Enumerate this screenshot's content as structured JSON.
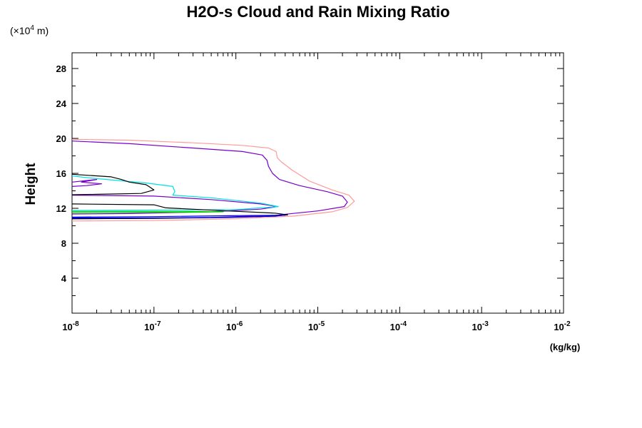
{
  "chart_data": {
    "type": "line",
    "title": "H2O-s Cloud and Rain Mixing Ratio",
    "ylabel": "Height",
    "yunit_prefix": "(×10",
    "yunit_exp": "4",
    "yunit_suffix": " m)",
    "xunit": "(kg/kg)",
    "xscale": "log",
    "xlim": [
      1e-08,
      0.01
    ],
    "ylim": [
      0,
      29.8
    ],
    "x_tick_labels": [
      {
        "base": "10",
        "exp": "-8",
        "value": 1e-08
      },
      {
        "base": "10",
        "exp": "-7",
        "value": 1e-07
      },
      {
        "base": "10",
        "exp": "-6",
        "value": 1e-06
      },
      {
        "base": "10",
        "exp": "-5",
        "value": 1e-05
      },
      {
        "base": "10",
        "exp": "-4",
        "value": 0.0001
      },
      {
        "base": "10",
        "exp": "-3",
        "value": 0.001
      },
      {
        "base": "10",
        "exp": "-2",
        "value": 0.01
      }
    ],
    "y_tick_labels": [
      "4",
      "8",
      "12",
      "16",
      "20",
      "24",
      "28"
    ],
    "y_major_ticks": [
      4,
      8,
      12,
      16,
      20,
      24,
      28
    ],
    "grid": false,
    "legend": "none",
    "series": [
      {
        "color": "#ff9a9a",
        "points": [
          [
            1e-08,
            19.9
          ],
          [
            5e-08,
            19.8
          ],
          [
            3e-07,
            19.5
          ],
          [
            1.2e-06,
            19.2
          ],
          [
            2.5e-06,
            18.9
          ],
          [
            3.1e-06,
            18.5
          ],
          [
            3.2e-06,
            17.8
          ],
          [
            3.6e-06,
            17.3
          ],
          [
            5e-06,
            16.3
          ],
          [
            8e-06,
            15.1
          ],
          [
            1.5e-05,
            14.1
          ],
          [
            2.4e-05,
            13.5
          ],
          [
            2.8e-05,
            12.8
          ],
          [
            2.3e-05,
            12.1
          ],
          [
            1.5e-05,
            11.6
          ],
          [
            5e-06,
            11.1
          ],
          [
            1e-06,
            10.8
          ],
          [
            1e-07,
            10.6
          ],
          [
            1e-08,
            10.55
          ]
        ]
      },
      {
        "color": "#7700cc",
        "points": [
          [
            1e-08,
            19.7
          ],
          [
            5e-08,
            19.4
          ],
          [
            3e-07,
            18.9
          ],
          [
            1.2e-06,
            18.5
          ],
          [
            2.1e-06,
            18.1
          ],
          [
            2.4e-06,
            17.5
          ],
          [
            2.5e-06,
            16.8
          ],
          [
            2.8e-06,
            16.0
          ],
          [
            3.4e-06,
            15.3
          ],
          [
            6e-06,
            14.6
          ],
          [
            1.3e-05,
            13.9
          ],
          [
            2e-05,
            13.4
          ],
          [
            2.3e-05,
            12.7
          ],
          [
            2.1e-05,
            12.2
          ],
          [
            1e-05,
            11.7
          ],
          [
            3e-06,
            11.2
          ],
          [
            5e-07,
            10.95
          ],
          [
            5e-08,
            10.85
          ],
          [
            1e-08,
            10.8
          ]
        ]
      },
      {
        "color": "#7700cc",
        "points": [
          [
            1e-08,
            13.5
          ],
          [
            1e-07,
            13.4
          ],
          [
            5e-07,
            13.0
          ],
          [
            2e-06,
            12.5
          ],
          [
            3.2e-06,
            12.2
          ],
          [
            2e-06,
            11.9
          ],
          [
            5e-07,
            11.6
          ],
          [
            5e-08,
            11.4
          ],
          [
            1e-08,
            11.35
          ]
        ]
      },
      {
        "color": "#7700cc",
        "points": [
          [
            1e-08,
            15.0
          ],
          [
            2e-08,
            15.3
          ],
          [
            1.3e-08,
            15.0
          ],
          [
            2.3e-08,
            14.8
          ],
          [
            1.5e-08,
            14.6
          ],
          [
            1e-08,
            14.5
          ]
        ]
      },
      {
        "color": "#00e0e0",
        "points": [
          [
            1e-08,
            15.7
          ],
          [
            2e-08,
            15.4
          ],
          [
            8e-08,
            14.9
          ],
          [
            1.7e-07,
            14.5
          ],
          [
            1.8e-07,
            13.9
          ],
          [
            1.7e-07,
            13.5
          ],
          [
            5e-07,
            13.2
          ],
          [
            2e-06,
            12.6
          ],
          [
            3.3e-06,
            12.2
          ],
          [
            1e-06,
            11.85
          ],
          [
            1e-07,
            11.8
          ],
          [
            1e-08,
            11.75
          ]
        ]
      },
      {
        "color": "#000000",
        "points": [
          [
            1e-08,
            15.9
          ],
          [
            3e-08,
            15.6
          ],
          [
            4e-08,
            15.3
          ],
          [
            5e-08,
            15.0
          ],
          [
            8e-08,
            14.7
          ],
          [
            9e-08,
            14.4
          ],
          [
            1e-07,
            14.1
          ],
          [
            7e-08,
            13.7
          ],
          [
            2e-08,
            13.6
          ],
          [
            1e-08,
            13.55
          ]
        ]
      },
      {
        "color": "#000000",
        "points": [
          [
            1e-08,
            12.5
          ],
          [
            1e-07,
            12.4
          ],
          [
            1.4e-07,
            12.05
          ],
          [
            8e-07,
            11.7
          ],
          [
            3e-06,
            11.45
          ],
          [
            4.3e-06,
            11.25
          ],
          [
            3e-06,
            11.1
          ],
          [
            8e-07,
            10.95
          ],
          [
            1e-07,
            10.85
          ],
          [
            1e-08,
            10.8
          ]
        ]
      },
      {
        "color": "#0000ee",
        "points": [
          [
            1e-08,
            11.0
          ],
          [
            1e-07,
            11.05
          ],
          [
            8e-07,
            11.15
          ],
          [
            3e-06,
            11.2
          ],
          [
            4e-06,
            11.2
          ],
          [
            2e-06,
            11.05
          ],
          [
            5e-07,
            10.95
          ],
          [
            1e-07,
            10.9
          ],
          [
            1e-08,
            10.9
          ]
        ]
      },
      {
        "color": "#00cc00",
        "points": [
          [
            1e-08,
            11.65
          ],
          [
            2e-07,
            11.65
          ],
          [
            7e-07,
            11.6
          ],
          [
            3e-07,
            11.55
          ],
          [
            1e-08,
            11.5
          ]
        ]
      }
    ]
  }
}
